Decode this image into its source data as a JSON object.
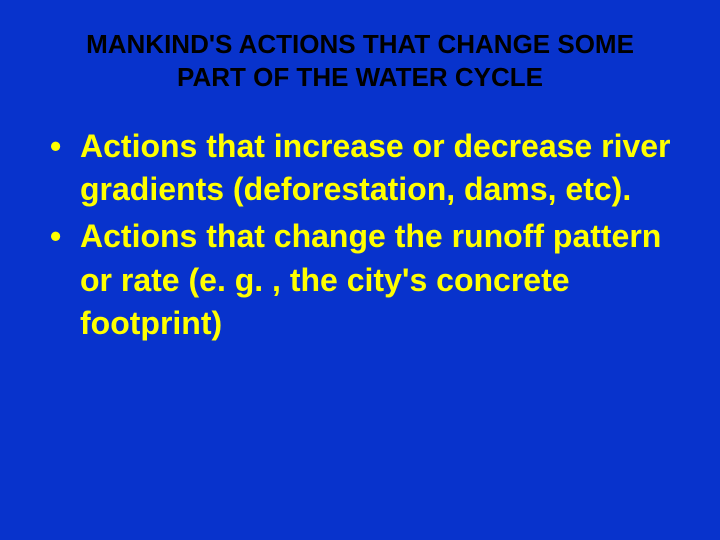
{
  "slide": {
    "background_color": "#0833cc",
    "title": {
      "text": "MANKIND'S ACTIONS THAT CHANGE SOME PART OF THE WATER CYCLE",
      "color": "#000000",
      "font_size": 26,
      "font_weight": "bold",
      "text_align": "center"
    },
    "bullets": [
      {
        "marker": "•",
        "text": "Actions that increase or decrease river gradients (deforestation, dams, etc)."
      },
      {
        "marker": "•",
        "text": "Actions that change the runoff pattern or rate (e. g. , the city's concrete footprint)"
      }
    ],
    "bullet_style": {
      "color": "#ffff00",
      "font_size": 32,
      "font_weight": "bold",
      "line_height": 1.35
    }
  }
}
